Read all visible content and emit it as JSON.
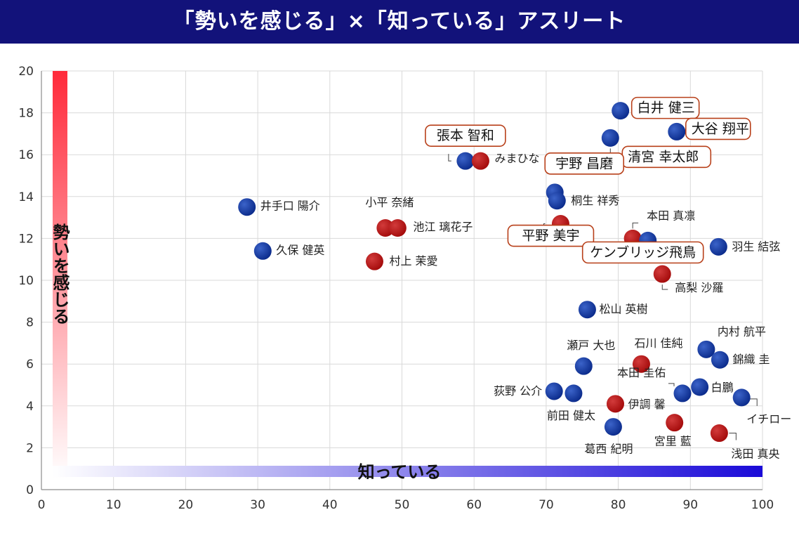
{
  "title": "「勢いを感じる」×「知っている」アスリート",
  "chart_data": {
    "type": "scatter",
    "title": "「勢いを感じる」×「知っている」アスリート",
    "xlabel": "知っている",
    "ylabel": "勢いを感じる",
    "xlim": [
      0,
      100
    ],
    "ylim": [
      0,
      20
    ],
    "xticks": [
      0,
      10,
      20,
      30,
      40,
      50,
      60,
      70,
      80,
      90,
      100
    ],
    "yticks": [
      0,
      2,
      4,
      6,
      8,
      10,
      12,
      14,
      16,
      18,
      20
    ],
    "grid": true,
    "colors": {
      "blue": "#0a2a8a",
      "red": "#a30a0a",
      "callout_border": "#b8401a",
      "title_bg": "#12127a"
    },
    "points": [
      {
        "name": "白井 健三",
        "x": 80.3,
        "y": 18.1,
        "color": "blue",
        "boxed": true
      },
      {
        "name": "大谷 翔平",
        "x": 88.1,
        "y": 17.1,
        "color": "blue",
        "boxed": true
      },
      {
        "name": "清宮 幸太郎",
        "x": 78.9,
        "y": 16.8,
        "color": "blue",
        "boxed": true
      },
      {
        "name": "張本 智和",
        "x": 58.8,
        "y": 15.7,
        "color": "blue",
        "boxed": true
      },
      {
        "name": "みまひな",
        "x": 60.9,
        "y": 15.7,
        "color": "red",
        "boxed": false
      },
      {
        "name": "宇野 昌磨",
        "x": 71.2,
        "y": 14.2,
        "color": "blue",
        "boxed": true
      },
      {
        "name": "桐生 祥秀",
        "x": 71.5,
        "y": 13.8,
        "color": "blue",
        "boxed": false
      },
      {
        "name": "井手口 陽介",
        "x": 28.5,
        "y": 13.5,
        "color": "blue",
        "boxed": false
      },
      {
        "name": "小平 奈緒",
        "x": 47.7,
        "y": 12.5,
        "color": "red",
        "boxed": false
      },
      {
        "name": "池江 璃花子",
        "x": 49.4,
        "y": 12.5,
        "color": "red",
        "boxed": false
      },
      {
        "name": "本田 真凛",
        "x": 82.0,
        "y": 12.0,
        "color": "red",
        "boxed": false
      },
      {
        "name": "平野 美宇",
        "x": 72.0,
        "y": 12.7,
        "color": "red",
        "boxed": true
      },
      {
        "name": "ケンブリッジ飛鳥",
        "x": 84.1,
        "y": 11.9,
        "color": "blue",
        "boxed": true
      },
      {
        "name": "羽生 結弦",
        "x": 93.9,
        "y": 11.6,
        "color": "blue",
        "boxed": false
      },
      {
        "name": "久保 健英",
        "x": 30.7,
        "y": 11.4,
        "color": "blue",
        "boxed": false
      },
      {
        "name": "村上 茉愛",
        "x": 46.2,
        "y": 10.9,
        "color": "red",
        "boxed": false
      },
      {
        "name": "高梨 沙羅",
        "x": 86.1,
        "y": 10.3,
        "color": "red",
        "boxed": false
      },
      {
        "name": "松山 英樹",
        "x": 75.7,
        "y": 8.6,
        "color": "blue",
        "boxed": false
      },
      {
        "name": "内村 航平",
        "x": 92.2,
        "y": 6.7,
        "color": "blue",
        "boxed": false
      },
      {
        "name": "錦織 圭",
        "x": 94.1,
        "y": 6.2,
        "color": "blue",
        "boxed": false
      },
      {
        "name": "瀬戸 大也",
        "x": 75.2,
        "y": 5.9,
        "color": "blue",
        "boxed": false
      },
      {
        "name": "石川 佳純",
        "x": 83.2,
        "y": 6.0,
        "color": "red",
        "boxed": false
      },
      {
        "name": "白鵬",
        "x": 91.3,
        "y": 4.9,
        "color": "blue",
        "boxed": false
      },
      {
        "name": "荻野 公介",
        "x": 71.1,
        "y": 4.7,
        "color": "blue",
        "boxed": false
      },
      {
        "name": "前田 健太",
        "x": 73.8,
        "y": 4.6,
        "color": "blue",
        "boxed": false
      },
      {
        "name": "本田 圭佑",
        "x": 88.9,
        "y": 4.6,
        "color": "blue",
        "boxed": false
      },
      {
        "name": "イチロー",
        "x": 97.1,
        "y": 4.4,
        "color": "blue",
        "boxed": false
      },
      {
        "name": "伊調 馨",
        "x": 79.6,
        "y": 4.1,
        "color": "red",
        "boxed": false
      },
      {
        "name": "宮里 藍",
        "x": 87.8,
        "y": 3.2,
        "color": "red",
        "boxed": false
      },
      {
        "name": "葛西 紀明",
        "x": 79.3,
        "y": 3.0,
        "color": "blue",
        "boxed": false
      },
      {
        "name": "浅田 真央",
        "x": 94.0,
        "y": 2.7,
        "color": "red",
        "boxed": false
      }
    ]
  }
}
